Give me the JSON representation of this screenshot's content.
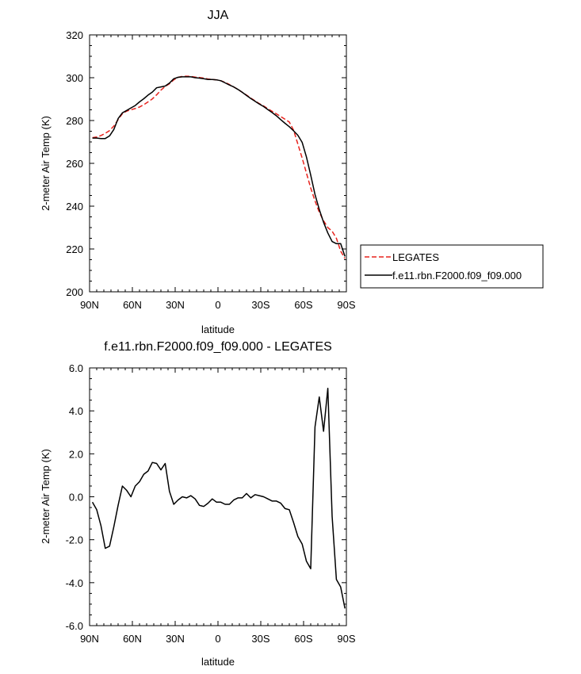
{
  "chart_data": [
    {
      "type": "line",
      "title": "JJA",
      "xlabel": "latitude",
      "ylabel": "2-meter Air Temp (K)",
      "xlim": [
        90,
        -90
      ],
      "ylim": [
        200,
        320
      ],
      "x_tick_values": [
        90,
        60,
        30,
        0,
        -30,
        -60,
        -90
      ],
      "x_tick_labels": [
        "90N",
        "60N",
        "30N",
        "0",
        "30S",
        "60S",
        "90S"
      ],
      "y_tick_values": [
        200,
        220,
        240,
        260,
        280,
        300,
        320
      ],
      "y_tick_labels": [
        "200",
        "220",
        "240",
        "260",
        "280",
        "300",
        "320"
      ],
      "grid": false,
      "legend_position": "right",
      "series": [
        {
          "name": "LEGATES",
          "color": "#e8231d",
          "dash": "dashed",
          "x": [
            88,
            85,
            82,
            79,
            76,
            73,
            70,
            67,
            64,
            61,
            58,
            55,
            52,
            49,
            46,
            43,
            40,
            37,
            34,
            31,
            28,
            25,
            22,
            19,
            16,
            13,
            10,
            7,
            4,
            1,
            -2,
            -5,
            -8,
            -11,
            -14,
            -17,
            -20,
            -23,
            -26,
            -29,
            -32,
            -35,
            -38,
            -41,
            -44,
            -47,
            -50,
            -53,
            -56,
            -59,
            -62,
            -65,
            -68,
            -71,
            -74,
            -77,
            -80,
            -83,
            -86,
            -89
          ],
          "y": [
            272,
            272.3,
            273,
            274,
            275.3,
            277.4,
            280.4,
            283.2,
            284.4,
            285,
            285.6,
            286.3,
            287.4,
            288.7,
            290.1,
            292,
            294.2,
            295.9,
            297.2,
            299,
            300.2,
            300.6,
            300.7,
            300.6,
            300.3,
            300.1,
            299.8,
            299.4,
            299.2,
            299,
            298.6,
            297.8,
            296.8,
            295.7,
            294.6,
            293.2,
            291.9,
            290.5,
            289.2,
            287.9,
            286.8,
            285.5,
            284.3,
            283.1,
            281.8,
            280.6,
            279.3,
            275.5,
            269,
            262.5,
            255.5,
            248.5,
            242.5,
            237.2,
            233.2,
            230,
            228.3,
            225,
            219,
            215.5
          ]
        },
        {
          "name": "f.e11.rbn.F2000.f09_f09.000",
          "color": "#000000",
          "dash": "solid",
          "x": [
            88,
            85,
            82,
            79,
            76,
            73,
            70,
            67,
            64,
            61,
            58,
            55,
            52,
            49,
            46,
            43,
            40,
            37,
            34,
            31,
            28,
            25,
            22,
            19,
            16,
            13,
            10,
            7,
            4,
            1,
            -2,
            -5,
            -8,
            -11,
            -14,
            -17,
            -20,
            -23,
            -26,
            -29,
            -32,
            -35,
            -38,
            -41,
            -44,
            -47,
            -50,
            -53,
            -56,
            -59,
            -62,
            -65,
            -68,
            -71,
            -74,
            -77,
            -80,
            -83,
            -86,
            -89
          ],
          "y": [
            271.8,
            271.8,
            271.6,
            271.6,
            272.8,
            275.8,
            280.9,
            283.6,
            284.7,
            285.9,
            287,
            288.7,
            290.2,
            291.9,
            293.3,
            295.3,
            295.7,
            296.1,
            297.5,
            299.5,
            300.2,
            300.4,
            300.4,
            300.4,
            300,
            299.8,
            299.5,
            299.2,
            299.2,
            299,
            298.6,
            297.6,
            296.6,
            295.7,
            294.5,
            293.2,
            291.7,
            290.3,
            289,
            287.7,
            286.5,
            285.1,
            283.7,
            282.2,
            280.4,
            278.7,
            277.1,
            275.2,
            273.1,
            269.8,
            263,
            254.5,
            245.5,
            238.5,
            232.5,
            227.5,
            223.5,
            222.5,
            222.5,
            216.5
          ]
        }
      ]
    },
    {
      "type": "line",
      "title": "f.e11.rbn.F2000.f09_f09.000 - LEGATES",
      "xlabel": "latitude",
      "ylabel": "2-meter Air Temp (K)",
      "xlim": [
        90,
        -90
      ],
      "ylim": [
        -6,
        6
      ],
      "x_tick_values": [
        90,
        60,
        30,
        0,
        -30,
        -60,
        -90
      ],
      "x_tick_labels": [
        "90N",
        "60N",
        "30N",
        "0",
        "30S",
        "60S",
        "90S"
      ],
      "y_tick_values": [
        -6,
        -4,
        -2,
        0,
        2,
        4,
        6
      ],
      "y_tick_labels": [
        "-6.0",
        "-4.0",
        "-2.0",
        "0.0",
        "2.0",
        "4.0",
        "6.0"
      ],
      "grid": false,
      "series": [
        {
          "color": "#000000",
          "dash": "solid",
          "x": [
            88,
            85,
            82,
            79,
            76,
            73,
            70,
            67,
            64,
            61,
            58,
            55,
            52,
            49,
            46,
            43,
            40,
            37,
            34,
            31,
            28,
            25,
            22,
            19,
            16,
            13,
            10,
            7,
            4,
            1,
            -2,
            -5,
            -8,
            -11,
            -14,
            -17,
            -20,
            -23,
            -26,
            -29,
            -32,
            -35,
            -38,
            -41,
            -44,
            -47,
            -50,
            -53,
            -56,
            -59,
            -62,
            -65,
            -68,
            -71,
            -74,
            -77,
            -80,
            -83,
            -86,
            -89
          ],
          "y": [
            -0.25,
            -0.6,
            -1.35,
            -2.4,
            -2.3,
            -1.4,
            -0.4,
            0.5,
            0.3,
            0,
            0.5,
            0.7,
            1.05,
            1.2,
            1.6,
            1.55,
            1.25,
            1.55,
            0.25,
            -0.35,
            -0.15,
            0,
            -0.05,
            0.05,
            -0.1,
            -0.4,
            -0.45,
            -0.3,
            -0.1,
            -0.25,
            -0.25,
            -0.35,
            -0.35,
            -0.15,
            -0.05,
            -0.05,
            0.15,
            -0.05,
            0.1,
            0.05,
            0,
            -0.1,
            -0.2,
            -0.2,
            -0.3,
            -0.55,
            -0.6,
            -1.2,
            -1.85,
            -2.2,
            -3.0,
            -3.35,
            3.25,
            4.65,
            3.05,
            5.05,
            -0.9,
            -3.85,
            -4.2,
            -5.2
          ]
        }
      ]
    }
  ]
}
